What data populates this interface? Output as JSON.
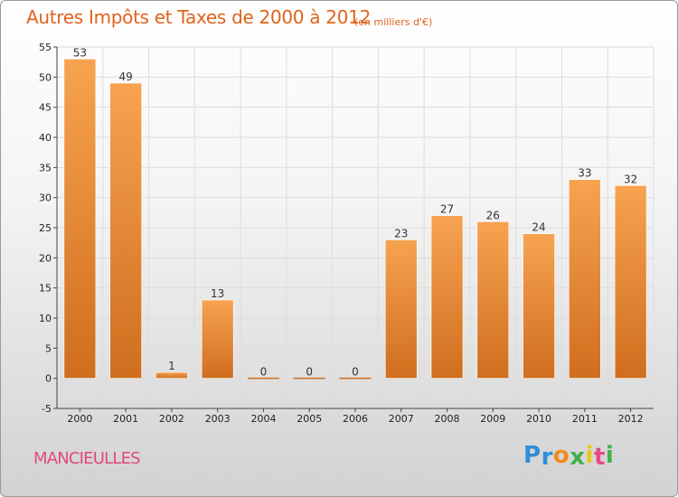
{
  "chart_data": {
    "type": "bar",
    "title": "Autres Impôts et Taxes de 2000 à 2012",
    "subtitle": "(en milliers d'€)",
    "categories": [
      "2000",
      "2001",
      "2002",
      "2003",
      "2004",
      "2005",
      "2006",
      "2007",
      "2008",
      "2009",
      "2010",
      "2011",
      "2012"
    ],
    "values": [
      53,
      49,
      1,
      13,
      0,
      0,
      0,
      23,
      27,
      26,
      24,
      33,
      32
    ],
    "ylim": [
      -5,
      55
    ],
    "yticks": [
      -5,
      0,
      5,
      10,
      15,
      20,
      25,
      30,
      35,
      40,
      45,
      50,
      55
    ],
    "grid": true,
    "bar_color_top": "#f7a350",
    "bar_color_bottom": "#cf6e1e",
    "xlabel": "",
    "ylabel": ""
  },
  "location": "MANCIEULLES",
  "logo": {
    "letters": [
      {
        "char": "P",
        "color": "#2f8fd8"
      },
      {
        "char": "r",
        "color": "#2f8fd8"
      },
      {
        "char": "o",
        "color": "#f08a1c"
      },
      {
        "char": "x",
        "color": "#3fb14a"
      },
      {
        "char": "i",
        "color": "#e8c61c"
      },
      {
        "char": "t",
        "color": "#e84a8a"
      },
      {
        "char": "i",
        "color": "#3fb14a"
      }
    ]
  }
}
